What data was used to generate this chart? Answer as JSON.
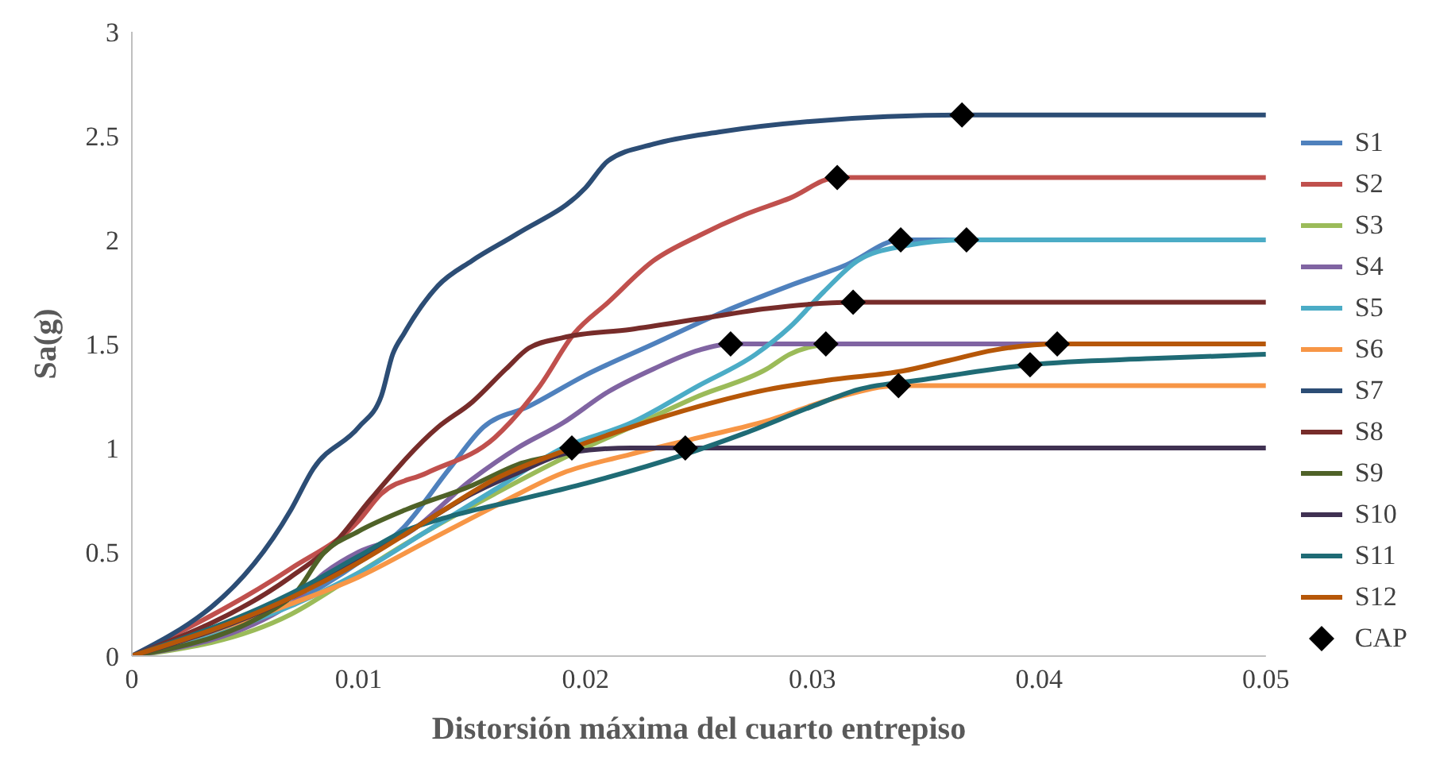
{
  "chart_data": {
    "type": "line",
    "xlabel": "Distorsión máxima del cuarto entrepiso",
    "ylabel": "Sa(g)",
    "xlim": [
      0,
      0.05
    ],
    "xticks": [
      0,
      0.01,
      0.02,
      0.03,
      0.04,
      0.05
    ],
    "ylim": [
      0,
      3
    ],
    "yticks": [
      0,
      0.5,
      1,
      1.5,
      2,
      2.5,
      3
    ],
    "grid": false,
    "legend": "right",
    "series": [
      {
        "name": "S1",
        "color": "#4f81bd",
        "x": [
          0,
          0.007,
          0.01,
          0.012,
          0.014,
          0.0155,
          0.0175,
          0.02,
          0.023,
          0.026,
          0.029,
          0.0315,
          0.0339,
          0.0368
        ],
        "values": [
          0,
          0.25,
          0.45,
          0.62,
          0.9,
          1.1,
          1.2,
          1.35,
          1.5,
          1.65,
          1.78,
          1.88,
          2.0,
          2.0
        ]
      },
      {
        "name": "S2",
        "color": "#c0504d",
        "x": [
          0,
          0.007,
          0.01,
          0.011,
          0.013,
          0.016,
          0.018,
          0.0195,
          0.021,
          0.023,
          0.025,
          0.027,
          0.029,
          0.0311,
          0.05
        ],
        "values": [
          0,
          0.42,
          0.65,
          0.78,
          0.88,
          1.05,
          1.3,
          1.55,
          1.7,
          1.9,
          2.02,
          2.12,
          2.2,
          2.3,
          2.3
        ]
      },
      {
        "name": "S3",
        "color": "#9bbb59",
        "x": [
          0,
          0.007,
          0.01,
          0.013,
          0.016,
          0.019,
          0.022,
          0.025,
          0.028,
          0.029,
          0.0306
        ],
        "values": [
          0,
          0.2,
          0.4,
          0.6,
          0.78,
          0.95,
          1.1,
          1.25,
          1.38,
          1.45,
          1.5
        ]
      },
      {
        "name": "S4",
        "color": "#8064a2",
        "x": [
          0,
          0.007,
          0.0085,
          0.01,
          0.012,
          0.015,
          0.017,
          0.019,
          0.021,
          0.023,
          0.025,
          0.0264,
          0.0408
        ],
        "values": [
          0,
          0.25,
          0.4,
          0.5,
          0.58,
          0.85,
          1.0,
          1.12,
          1.27,
          1.38,
          1.47,
          1.5,
          1.5
        ]
      },
      {
        "name": "S5",
        "color": "#4bacc6",
        "x": [
          0,
          0.007,
          0.01,
          0.013,
          0.016,
          0.019,
          0.022,
          0.025,
          0.0275,
          0.029,
          0.0305,
          0.032,
          0.034,
          0.0368,
          0.05
        ],
        "values": [
          0,
          0.24,
          0.4,
          0.6,
          0.8,
          1.0,
          1.12,
          1.3,
          1.45,
          1.58,
          1.75,
          1.9,
          1.97,
          2.0,
          2.0
        ]
      },
      {
        "name": "S6",
        "color": "#f79646",
        "x": [
          0,
          0.007,
          0.01,
          0.013,
          0.016,
          0.019,
          0.022,
          0.025,
          0.028,
          0.031,
          0.0338,
          0.05
        ],
        "values": [
          0,
          0.25,
          0.38,
          0.55,
          0.72,
          0.88,
          0.97,
          1.05,
          1.13,
          1.24,
          1.3,
          1.3
        ]
      },
      {
        "name": "S7",
        "color": "#2c4d75",
        "x": [
          0,
          0.007,
          0.008,
          0.01,
          0.011,
          0.0115,
          0.012,
          0.0135,
          0.015,
          0.017,
          0.02,
          0.021,
          0.023,
          0.026,
          0.03,
          0.0366,
          0.05
        ],
        "values": [
          0,
          0.7,
          0.9,
          1.1,
          1.25,
          1.45,
          1.55,
          1.78,
          1.9,
          2.03,
          2.25,
          2.38,
          2.46,
          2.52,
          2.57,
          2.6,
          2.6
        ]
      },
      {
        "name": "S8",
        "color": "#772c2a",
        "x": [
          0,
          0.007,
          0.009,
          0.0105,
          0.0135,
          0.015,
          0.0165,
          0.0175,
          0.019,
          0.022,
          0.025,
          0.028,
          0.0318,
          0.05
        ],
        "values": [
          0,
          0.38,
          0.55,
          0.75,
          1.1,
          1.22,
          1.38,
          1.48,
          1.53,
          1.57,
          1.62,
          1.67,
          1.7,
          1.7
        ]
      },
      {
        "name": "S9",
        "color": "#4f6228",
        "x": [
          0,
          0.007,
          0.0085,
          0.01,
          0.012,
          0.015,
          0.017,
          0.019,
          0.0194
        ],
        "values": [
          0,
          0.28,
          0.5,
          0.6,
          0.7,
          0.82,
          0.92,
          0.98,
          1.0
        ]
      },
      {
        "name": "S10",
        "color": "#403152",
        "x": [
          0,
          0.007,
          0.009,
          0.011,
          0.013,
          0.015,
          0.017,
          0.0194,
          0.022,
          0.05
        ],
        "values": [
          0,
          0.28,
          0.4,
          0.52,
          0.65,
          0.78,
          0.88,
          0.98,
          1.0,
          1.0
        ]
      },
      {
        "name": "S11",
        "color": "#1f6b75",
        "x": [
          0,
          0.007,
          0.01,
          0.012,
          0.014,
          0.017,
          0.02,
          0.0244,
          0.027,
          0.03,
          0.032,
          0.035,
          0.0396,
          0.045,
          0.05
        ],
        "values": [
          0,
          0.3,
          0.48,
          0.6,
          0.67,
          0.75,
          0.83,
          0.97,
          1.07,
          1.2,
          1.28,
          1.33,
          1.4,
          1.43,
          1.45
        ]
      },
      {
        "name": "S12",
        "color": "#b65708",
        "x": [
          0,
          0.007,
          0.01,
          0.013,
          0.016,
          0.0194,
          0.022,
          0.025,
          0.028,
          0.031,
          0.034,
          0.036,
          0.038,
          0.0408,
          0.05
        ],
        "values": [
          0,
          0.28,
          0.45,
          0.65,
          0.85,
          1.0,
          1.1,
          1.2,
          1.28,
          1.33,
          1.37,
          1.42,
          1.47,
          1.5,
          1.5
        ]
      },
      {
        "name": "CAP",
        "type": "scatter",
        "marker": "diamond",
        "color": "#000000",
        "x": [
          0.0366,
          0.0311,
          0.0339,
          0.0368,
          0.0318,
          0.0264,
          0.0306,
          0.0408,
          0.0396,
          0.0338,
          0.0194,
          0.0244
        ],
        "values": [
          2.6,
          2.3,
          2.0,
          2.0,
          1.7,
          1.5,
          1.5,
          1.5,
          1.4,
          1.3,
          1.0,
          1.0
        ]
      }
    ]
  }
}
